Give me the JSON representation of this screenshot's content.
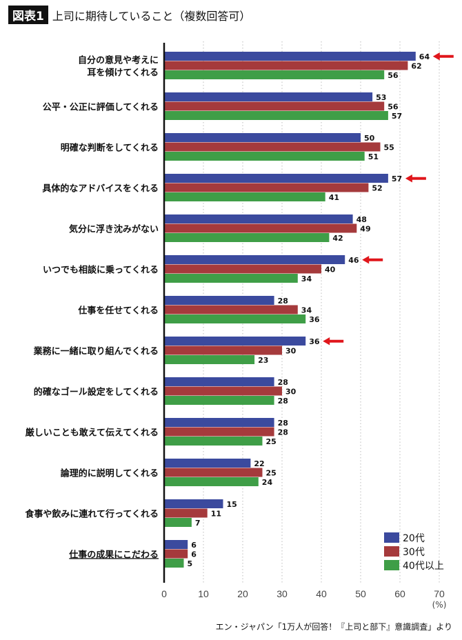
{
  "header": {
    "badge": "図表1",
    "title": "上司に期待していること（複数回答可）"
  },
  "source": "エン・ジャパン「1万人が回答！『上司と部下』意識調査」より",
  "chart_data": {
    "type": "bar",
    "orientation": "horizontal",
    "categories": [
      "自分の意見や考えに\n耳を傾けてくれる",
      "公平・公正に評価してくれる",
      "明確な判断をしてくれる",
      "具体的なアドバイスをくれる",
      "気分に浮き沈みがない",
      "いつでも相談に乗ってくれる",
      "仕事を任せてくれる",
      "業務に一緒に取り組んでくれる",
      "的確なゴール設定をしてくれる",
      "厳しいことも敢えて伝えてくれる",
      "論理的に説明してくれる",
      "食事や飲みに連れて行ってくれる",
      "仕事の成果にこだわる"
    ],
    "underlined_category": "仕事の成果にこだわる",
    "series": [
      {
        "name": "20代",
        "color": "#3b4a9e",
        "values": [
          64,
          53,
          50,
          57,
          48,
          46,
          28,
          36,
          28,
          28,
          22,
          15,
          6
        ]
      },
      {
        "name": "30代",
        "color": "#a53a3c",
        "values": [
          62,
          56,
          55,
          52,
          49,
          40,
          34,
          30,
          30,
          28,
          25,
          11,
          6
        ]
      },
      {
        "name": "40代以上",
        "color": "#3f9e47",
        "values": [
          56,
          57,
          51,
          41,
          42,
          34,
          36,
          23,
          28,
          25,
          24,
          7,
          5
        ]
      }
    ],
    "highlight_arrows": {
      "series": "20代",
      "categories": [
        "自分の意見や考えに\n耳を傾けてくれる",
        "具体的なアドバイスをくれる",
        "いつでも相談に乗ってくれる",
        "業務に一緒に取り組んでくれる"
      ],
      "color": "#e0161b"
    },
    "xlim": [
      0,
      70
    ],
    "xticks": [
      "0",
      "10",
      "20",
      "30",
      "40",
      "50",
      "60",
      "70"
    ],
    "xunit": "(%)",
    "grid": "vertical dotted",
    "legend": "bottom-right"
  }
}
